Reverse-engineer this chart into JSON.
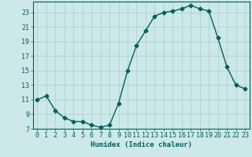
{
  "x": [
    0,
    1,
    2,
    3,
    4,
    5,
    6,
    7,
    8,
    9,
    10,
    11,
    12,
    13,
    14,
    15,
    16,
    17,
    18,
    19,
    20,
    21,
    22,
    23
  ],
  "y": [
    11,
    11.5,
    9.5,
    8.5,
    8,
    8,
    7.5,
    7.2,
    7.5,
    10.5,
    15,
    18.5,
    20.5,
    22.5,
    23,
    23.2,
    23.5,
    24,
    23.5,
    23.2,
    19.5,
    15.5,
    13,
    12.5
  ],
  "xlabel": "Humidex (Indice chaleur)",
  "xlim": [
    -0.5,
    23.5
  ],
  "ylim": [
    7,
    24.5
  ],
  "yticks": [
    7,
    9,
    11,
    13,
    15,
    17,
    19,
    21,
    23
  ],
  "xticks": [
    0,
    1,
    2,
    3,
    4,
    5,
    6,
    7,
    8,
    9,
    10,
    11,
    12,
    13,
    14,
    15,
    16,
    17,
    18,
    19,
    20,
    21,
    22,
    23
  ],
  "line_color": "#006060",
  "marker": "D",
  "marker_size": 2.5,
  "bg_color": "#cce8e8",
  "grid_color": "#aacccc",
  "axes_color": "#006060",
  "tick_color": "#006060",
  "label_fontsize": 6.5,
  "tick_fontsize": 6,
  "line_width": 1.0
}
